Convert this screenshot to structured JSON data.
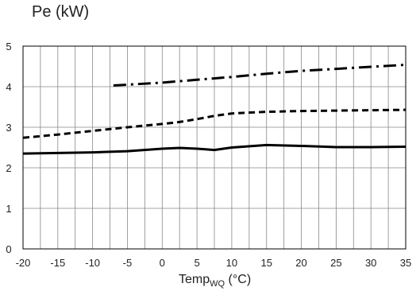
{
  "chart_data": {
    "type": "line",
    "title": "Pe (kW)",
    "xlabel": {
      "main": "Temp",
      "sub": "WQ",
      "unit": "(°C)"
    },
    "xlim": [
      -20,
      35
    ],
    "ylim": [
      0,
      5
    ],
    "xticks": [
      -20,
      -15,
      -10,
      -5,
      0,
      5,
      10,
      15,
      20,
      25,
      30,
      35
    ],
    "yticks": [
      0,
      1,
      2,
      3,
      4,
      5
    ],
    "grid": true,
    "colors": {
      "line": "#000000",
      "grid": "#888888",
      "axis": "#000000"
    },
    "series": [
      {
        "style": "solid",
        "x": [
          -20,
          -10,
          -5,
          0,
          2.5,
          5,
          7.5,
          10,
          15,
          20,
          25,
          30,
          35
        ],
        "y": [
          2.35,
          2.38,
          2.41,
          2.47,
          2.49,
          2.47,
          2.44,
          2.5,
          2.56,
          2.54,
          2.51,
          2.51,
          2.52
        ]
      },
      {
        "style": "dashed",
        "x": [
          -20,
          -15,
          -10,
          -5,
          0,
          2.5,
          5,
          7.5,
          10,
          15,
          20,
          25,
          30,
          35
        ],
        "y": [
          2.74,
          2.82,
          2.91,
          3.0,
          3.08,
          3.13,
          3.2,
          3.28,
          3.34,
          3.38,
          3.4,
          3.41,
          3.42,
          3.43
        ]
      },
      {
        "style": "dashdot",
        "x": [
          -7,
          0,
          5,
          10,
          15,
          20,
          25,
          30,
          35
        ],
        "y": [
          4.03,
          4.1,
          4.17,
          4.24,
          4.32,
          4.39,
          4.44,
          4.49,
          4.54
        ]
      }
    ]
  }
}
